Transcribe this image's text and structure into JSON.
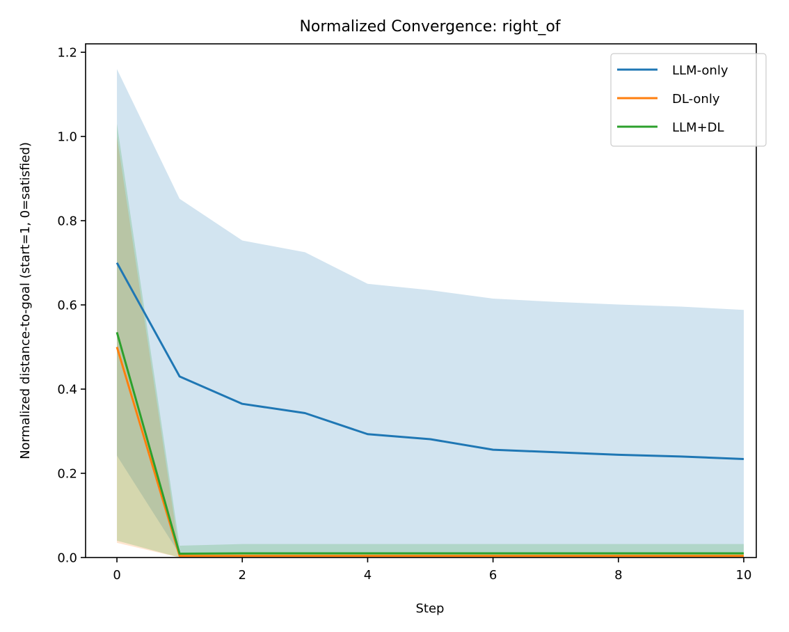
{
  "chart_data": {
    "type": "line",
    "title": "Normalized Convergence: right_of",
    "xlabel": "Step",
    "ylabel": "Normalized distance-to-goal (start=1, 0=satisfied)",
    "xlim": [
      -0.5,
      10.2
    ],
    "ylim": [
      0.0,
      1.22
    ],
    "xticks": [
      0,
      2,
      4,
      6,
      8,
      10
    ],
    "xtick_labels": [
      "0",
      "2",
      "4",
      "6",
      "8",
      "10"
    ],
    "yticks": [
      0.0,
      0.2,
      0.4,
      0.6,
      0.8,
      1.0,
      1.2
    ],
    "ytick_labels": [
      "0.0",
      "0.2",
      "0.4",
      "0.6",
      "0.8",
      "1.0",
      "1.2"
    ],
    "legend_position": "upper right",
    "series": [
      {
        "name": "LLM-only",
        "color": "#1f77b4",
        "x": [
          0,
          1,
          2,
          3,
          4,
          5,
          6,
          7,
          8,
          9,
          10
        ],
        "values": [
          0.7,
          0.43,
          0.365,
          0.343,
          0.293,
          0.281,
          0.256,
          0.25,
          0.244,
          0.24,
          0.234
        ],
        "band_upper": [
          1.16,
          0.852,
          0.753,
          0.725,
          0.65,
          0.635,
          0.615,
          0.607,
          0.601,
          0.596,
          0.588
        ],
        "band_lower": [
          0.242,
          0.008,
          0.008,
          0.008,
          0.008,
          0.008,
          0.008,
          0.008,
          0.008,
          0.008,
          0.008
        ]
      },
      {
        "name": "DL-only",
        "color": "#ff7f0e",
        "x": [
          0,
          1,
          2,
          3,
          4,
          5,
          6,
          7,
          8,
          9,
          10
        ],
        "values": [
          0.5,
          0.004,
          0.004,
          0.004,
          0.004,
          0.004,
          0.004,
          0.004,
          0.004,
          0.004,
          0.004
        ],
        "band_upper": [
          1.0,
          0.008,
          0.008,
          0.008,
          0.008,
          0.008,
          0.008,
          0.008,
          0.008,
          0.008,
          0.008
        ],
        "band_lower": [
          0.035,
          0.0,
          0.0,
          0.0,
          0.0,
          0.0,
          0.0,
          0.0,
          0.0,
          0.0,
          0.0
        ]
      },
      {
        "name": "LLM+DL",
        "color": "#2ca02c",
        "x": [
          0,
          1,
          2,
          3,
          4,
          5,
          6,
          7,
          8,
          9,
          10
        ],
        "values": [
          0.535,
          0.009,
          0.01,
          0.01,
          0.01,
          0.01,
          0.01,
          0.01,
          0.01,
          0.01,
          0.01
        ],
        "band_upper": [
          1.03,
          0.028,
          0.032,
          0.032,
          0.032,
          0.032,
          0.032,
          0.032,
          0.032,
          0.032,
          0.032
        ],
        "band_lower": [
          0.04,
          0.0,
          0.0,
          0.0,
          0.0,
          0.0,
          0.0,
          0.0,
          0.0,
          0.0,
          0.0
        ]
      }
    ]
  }
}
